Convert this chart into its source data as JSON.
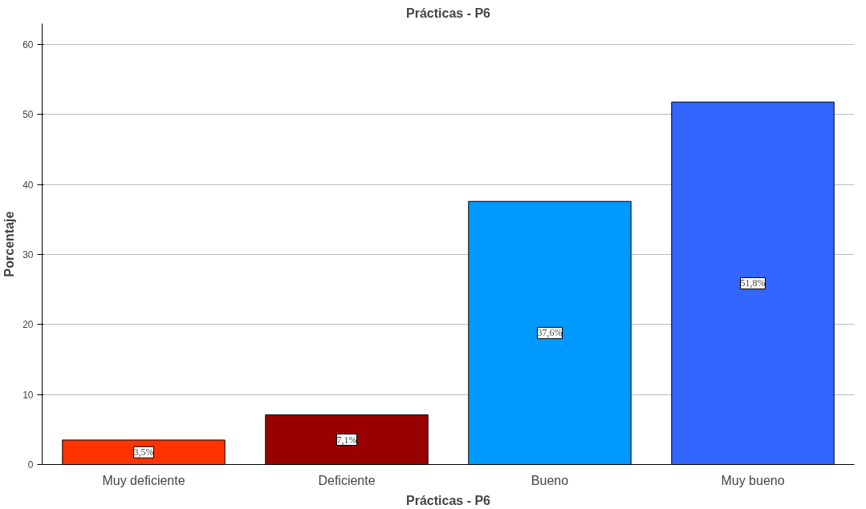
{
  "chart_data": {
    "type": "bar",
    "title": "Prácticas - P6",
    "xlabel": "Prácticas - P6",
    "ylabel": "Porcentaje",
    "categories": [
      "Muy deficiente",
      "Deficiente",
      "Bueno",
      "Muy bueno"
    ],
    "values": [
      3.5,
      7.1,
      37.6,
      51.8
    ],
    "colors": [
      "#ff3300",
      "#990000",
      "#0099ff",
      "#3366ff"
    ],
    "value_labels": [
      "3,5%",
      "7,1%",
      "37,6%",
      "51,8%"
    ],
    "ylim": [
      0,
      63
    ],
    "yticks": [
      0,
      10,
      20,
      30,
      40,
      50,
      60
    ],
    "grid": "y"
  }
}
